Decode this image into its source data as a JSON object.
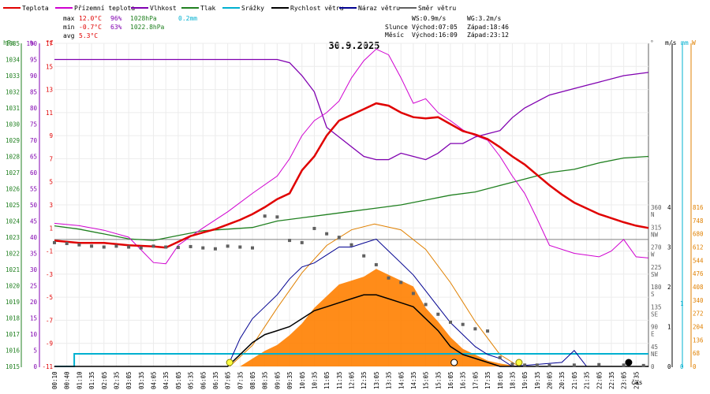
{
  "chart_data": {
    "type": "line",
    "title": "30.9.2025",
    "xlabel": "čas",
    "legend": [
      {
        "name": "Teplota",
        "color": "#e00000"
      },
      {
        "name": "Přízemní teplota",
        "color": "#d000d0"
      },
      {
        "name": "Vlhkost",
        "color": "#8000b0"
      },
      {
        "name": "Tlak",
        "color": "#208020"
      },
      {
        "name": "Srážky",
        "color": "#00b0d0"
      },
      {
        "name": "Rychlost větru",
        "color": "#000000"
      },
      {
        "name": "Náraz větru",
        "color": "#000090"
      },
      {
        "name": "Směr větru",
        "color": "#606060"
      }
    ],
    "stats": {
      "max": {
        "label": "max",
        "temp": "12.0°C",
        "hum": "96%",
        "press": "1028hPa",
        "rain": "0.2mm"
      },
      "min": {
        "label": "min",
        "temp": "-0.7°C",
        "hum": "63%",
        "press": "1022.8hPa"
      },
      "avg": {
        "label": "avg",
        "temp": "5.3°C"
      }
    },
    "info": {
      "ws": "WS:0.9m/s",
      "wg": "WG:3.2m/s",
      "sun_label": "Slunce",
      "sunrise": "Východ:07:05",
      "sunset": "Západ:18:46",
      "moon_label": "Měsíc",
      "moonrise": "Východ:16:09",
      "moonset": "Západ:23:12"
    },
    "axes": {
      "pressure": {
        "unit": "hPa",
        "range": [
          1015,
          1035
        ],
        "ticks": [
          "1035",
          "1034",
          "1033",
          "1032",
          "1031",
          "1030",
          "1029",
          "1028",
          "1027",
          "1026",
          "1025",
          "1024",
          "1023",
          "1022",
          "1021",
          "1020",
          "1019",
          "1018",
          "1017",
          "1016",
          "1015"
        ]
      },
      "humidity": {
        "unit": "%",
        "range": [
          0,
          100
        ],
        "ticks": [
          "100",
          "95",
          "90",
          "85",
          "80",
          "75",
          "70",
          "65",
          "60",
          "55",
          "50",
          "45",
          "40",
          "35",
          "30",
          "25",
          "20",
          "15",
          "10",
          "5",
          "0"
        ]
      },
      "temperature": {
        "unit": "°C",
        "range": [
          -11,
          17
        ],
        "ticks": [
          "17",
          "15",
          "13",
          "11",
          "9",
          "7",
          "5",
          "3",
          "1",
          "-1",
          "-3",
          "-5",
          "-7",
          "-9",
          "-11"
        ]
      },
      "direction": {
        "unit": "°",
        "ticks": [
          {
            "v": 0,
            "n": "0",
            "c": ""
          },
          {
            "v": 45,
            "n": "45",
            "c": "NE"
          },
          {
            "v": 90,
            "n": "90",
            "c": "E"
          },
          {
            "v": 135,
            "n": "135",
            "c": "SE"
          },
          {
            "v": 180,
            "n": "180",
            "c": "S"
          },
          {
            "v": 225,
            "n": "225",
            "c": "SW"
          },
          {
            "v": 270,
            "n": "270",
            "c": "W"
          },
          {
            "v": 315,
            "n": "315",
            "c": "NW"
          },
          {
            "v": 360,
            "n": "360",
            "c": "N"
          }
        ]
      },
      "wind": {
        "unit": "m/s",
        "ticks": [
          "0",
          "1",
          "2",
          "3",
          "4"
        ]
      },
      "rain": {
        "unit": "mm",
        "ticks": [
          "0",
          "1"
        ]
      },
      "solar": {
        "unit": "W",
        "ticks": [
          "0",
          "68",
          "136",
          "204",
          "272",
          "340",
          "408",
          "476",
          "544",
          "612",
          "680",
          "748",
          "816"
        ]
      }
    },
    "time_labels": [
      "00:10",
      "00:40",
      "01:10",
      "01:35",
      "02:05",
      "02:35",
      "03:05",
      "03:35",
      "04:05",
      "04:35",
      "05:05",
      "05:35",
      "06:05",
      "06:35",
      "07:05",
      "07:35",
      "08:05",
      "08:35",
      "09:05",
      "09:35",
      "10:05",
      "10:35",
      "11:05",
      "11:35",
      "12:05",
      "12:35",
      "13:05",
      "13:35",
      "14:05",
      "14:35",
      "15:05",
      "15:35",
      "16:05",
      "16:35",
      "17:05",
      "17:35",
      "18:05",
      "18:35",
      "19:05",
      "19:35",
      "20:05",
      "20:35",
      "21:05",
      "21:35",
      "22:05",
      "22:35",
      "23:05",
      "23:35"
    ],
    "series": {
      "temperature": [
        [
          0,
          -0.1
        ],
        [
          1,
          -0.3
        ],
        [
          2,
          -0.3
        ],
        [
          3,
          -0.5
        ],
        [
          4,
          -0.6
        ],
        [
          4.5,
          -0.7
        ],
        [
          5,
          -0.2
        ],
        [
          5.5,
          0.3
        ],
        [
          6,
          0.6
        ],
        [
          6.5,
          0.9
        ],
        [
          7,
          1.3
        ],
        [
          7.5,
          1.7
        ],
        [
          8,
          2.2
        ],
        [
          8.5,
          2.8
        ],
        [
          9,
          3.5
        ],
        [
          9.5,
          4.0
        ],
        [
          10,
          6.0
        ],
        [
          10.5,
          7.2
        ],
        [
          11,
          9.0
        ],
        [
          11.5,
          10.3
        ],
        [
          12,
          10.8
        ],
        [
          12.5,
          11.3
        ],
        [
          13,
          11.8
        ],
        [
          13.5,
          11.6
        ],
        [
          14,
          11.0
        ],
        [
          14.5,
          10.6
        ],
        [
          15,
          10.5
        ],
        [
          15.5,
          10.6
        ],
        [
          16,
          10.0
        ],
        [
          16.5,
          9.4
        ],
        [
          17,
          9.1
        ],
        [
          17.5,
          8.7
        ],
        [
          18,
          8.0
        ],
        [
          18.5,
          7.2
        ],
        [
          19,
          6.5
        ],
        [
          19.5,
          5.6
        ],
        [
          20,
          4.7
        ],
        [
          20.5,
          3.9
        ],
        [
          21,
          3.2
        ],
        [
          22,
          2.2
        ],
        [
          23,
          1.5
        ],
        [
          23.5,
          1.2
        ],
        [
          24,
          1.0
        ]
      ],
      "ground_temperature": [
        [
          0,
          1.4
        ],
        [
          1,
          1.2
        ],
        [
          2,
          0.8
        ],
        [
          3,
          0.2
        ],
        [
          4,
          -2.0
        ],
        [
          4.5,
          -2.1
        ],
        [
          5,
          -0.5
        ],
        [
          6,
          1.0
        ],
        [
          7,
          2.4
        ],
        [
          8,
          4.0
        ],
        [
          9,
          5.5
        ],
        [
          9.5,
          7.0
        ],
        [
          10,
          9.0
        ],
        [
          10.5,
          10.3
        ],
        [
          11,
          11.0
        ],
        [
          11.5,
          12.0
        ],
        [
          12,
          14.0
        ],
        [
          12.5,
          15.5
        ],
        [
          13,
          16.5
        ],
        [
          13.5,
          16.0
        ],
        [
          14,
          14.0
        ],
        [
          14.5,
          11.8
        ],
        [
          15,
          12.2
        ],
        [
          15.5,
          11.0
        ],
        [
          16,
          10.3
        ],
        [
          16.5,
          9.5
        ],
        [
          17,
          9.0
        ],
        [
          17.5,
          8.6
        ],
        [
          18,
          7.2
        ],
        [
          18.5,
          5.5
        ],
        [
          19,
          4.0
        ],
        [
          19.5,
          1.8
        ],
        [
          20,
          -0.5
        ],
        [
          21,
          -1.2
        ],
        [
          22,
          -1.5
        ],
        [
          22.5,
          -1.0
        ],
        [
          23,
          0.0
        ],
        [
          23.5,
          -1.5
        ],
        [
          24,
          -1.6
        ]
      ],
      "humidity": [
        [
          0,
          95
        ],
        [
          4,
          95
        ],
        [
          5,
          95
        ],
        [
          6,
          95
        ],
        [
          7,
          95
        ],
        [
          8,
          95
        ],
        [
          9,
          95
        ],
        [
          9.5,
          94
        ],
        [
          10,
          90
        ],
        [
          10.5,
          85
        ],
        [
          11,
          74
        ],
        [
          11.5,
          71
        ],
        [
          12,
          68
        ],
        [
          12.5,
          65
        ],
        [
          13,
          64
        ],
        [
          13.5,
          64
        ],
        [
          14,
          66
        ],
        [
          14.5,
          65
        ],
        [
          15,
          64
        ],
        [
          15.5,
          66
        ],
        [
          16,
          69
        ],
        [
          16.5,
          69
        ],
        [
          17,
          71
        ],
        [
          17.5,
          72
        ],
        [
          18,
          73
        ],
        [
          18.5,
          77
        ],
        [
          19,
          80
        ],
        [
          19.5,
          82
        ],
        [
          20,
          84
        ],
        [
          20.5,
          85
        ],
        [
          21,
          86
        ],
        [
          21.5,
          87
        ],
        [
          22,
          88
        ],
        [
          23,
          90
        ],
        [
          24,
          91
        ]
      ],
      "pressure": [
        [
          0,
          1023.7
        ],
        [
          1,
          1023.5
        ],
        [
          2,
          1023.2
        ],
        [
          3,
          1022.9
        ],
        [
          4,
          1022.8
        ],
        [
          5,
          1023.1
        ],
        [
          6,
          1023.4
        ],
        [
          7,
          1023.5
        ],
        [
          8,
          1023.6
        ],
        [
          9,
          1024.0
        ],
        [
          10,
          1024.2
        ],
        [
          11,
          1024.4
        ],
        [
          12,
          1024.6
        ],
        [
          13,
          1024.8
        ],
        [
          14,
          1025.0
        ],
        [
          15,
          1025.3
        ],
        [
          16,
          1025.6
        ],
        [
          17,
          1025.8
        ],
        [
          18,
          1026.2
        ],
        [
          19,
          1026.6
        ],
        [
          20,
          1027.0
        ],
        [
          21,
          1027.2
        ],
        [
          22,
          1027.6
        ],
        [
          23,
          1027.9
        ],
        [
          24,
          1028.0
        ]
      ],
      "rain_mm": [
        [
          0,
          0
        ],
        [
          0.8,
          0
        ],
        [
          0.8,
          0.2
        ],
        [
          24,
          0.2
        ]
      ],
      "wind_speed": [
        [
          0,
          0
        ],
        [
          7,
          0
        ],
        [
          7.5,
          0.3
        ],
        [
          8,
          0.6
        ],
        [
          8.5,
          0.8
        ],
        [
          9,
          0.9
        ],
        [
          9.5,
          1.0
        ],
        [
          10,
          1.2
        ],
        [
          10.5,
          1.4
        ],
        [
          11,
          1.5
        ],
        [
          11.5,
          1.6
        ],
        [
          12,
          1.7
        ],
        [
          12.5,
          1.8
        ],
        [
          13,
          1.8
        ],
        [
          13.5,
          1.7
        ],
        [
          14,
          1.6
        ],
        [
          14.5,
          1.5
        ],
        [
          15,
          1.2
        ],
        [
          15.5,
          0.9
        ],
        [
          16,
          0.5
        ],
        [
          16.5,
          0.3
        ],
        [
          17,
          0.2
        ],
        [
          17.5,
          0.1
        ],
        [
          18,
          0
        ],
        [
          24,
          0
        ]
      ],
      "wind_gust": [
        [
          0,
          0
        ],
        [
          7,
          0
        ],
        [
          7.5,
          0.7
        ],
        [
          8,
          1.2
        ],
        [
          8.5,
          1.5
        ],
        [
          9,
          1.8
        ],
        [
          9.5,
          2.2
        ],
        [
          10,
          2.5
        ],
        [
          10.5,
          2.6
        ],
        [
          11,
          2.8
        ],
        [
          11.5,
          3.0
        ],
        [
          12,
          3.0
        ],
        [
          12.5,
          3.1
        ],
        [
          13,
          3.2
        ],
        [
          13.5,
          2.9
        ],
        [
          14,
          2.6
        ],
        [
          14.5,
          2.3
        ],
        [
          15,
          1.9
        ],
        [
          15.5,
          1.5
        ],
        [
          16,
          1.1
        ],
        [
          16.5,
          0.8
        ],
        [
          17,
          0.5
        ],
        [
          17.5,
          0.3
        ],
        [
          18,
          0.2
        ],
        [
          18.5,
          0
        ],
        [
          20.5,
          0.1
        ],
        [
          21,
          0.4
        ],
        [
          21.5,
          0
        ],
        [
          24,
          0
        ]
      ],
      "solar": [
        [
          0,
          0
        ],
        [
          7.5,
          0
        ],
        [
          8,
          40
        ],
        [
          8.5,
          80
        ],
        [
          9,
          110
        ],
        [
          9.5,
          160
        ],
        [
          10,
          220
        ],
        [
          10.5,
          300
        ],
        [
          11,
          360
        ],
        [
          11.5,
          420
        ],
        [
          12,
          440
        ],
        [
          12.5,
          460
        ],
        [
          13,
          500
        ],
        [
          13.5,
          470
        ],
        [
          14,
          440
        ],
        [
          14.5,
          410
        ],
        [
          15,
          300
        ],
        [
          15.5,
          230
        ],
        [
          16,
          150
        ],
        [
          16.5,
          90
        ],
        [
          17,
          60
        ],
        [
          17.5,
          30
        ],
        [
          18,
          15
        ],
        [
          18.5,
          5
        ],
        [
          19,
          0
        ],
        [
          24,
          0
        ]
      ],
      "solar_theoretical": [
        [
          7.08,
          0
        ],
        [
          8,
          108
        ],
        [
          9,
          300
        ],
        [
          10,
          480
        ],
        [
          11,
          620
        ],
        [
          12,
          700
        ],
        [
          12.93,
          730
        ],
        [
          14,
          700
        ],
        [
          15,
          600
        ],
        [
          16,
          430
        ],
        [
          17,
          230
        ],
        [
          18,
          60
        ],
        [
          18.77,
          0
        ]
      ],
      "wind_direction": [
        [
          0,
          280
        ],
        [
          0.5,
          278
        ],
        [
          1,
          275
        ],
        [
          1.5,
          272
        ],
        [
          2,
          270
        ],
        [
          2.5,
          272
        ],
        [
          3,
          270
        ],
        [
          3.5,
          268
        ],
        [
          4,
          272
        ],
        [
          4.5,
          270
        ],
        [
          5,
          269
        ],
        [
          5.5,
          271
        ],
        [
          6,
          268
        ],
        [
          6.5,
          266
        ],
        [
          7,
          272
        ],
        [
          7.5,
          270
        ],
        [
          8,
          268
        ],
        [
          8.5,
          340
        ],
        [
          9,
          338
        ],
        [
          9.5,
          285
        ],
        [
          10,
          280
        ],
        [
          10.5,
          312
        ],
        [
          11,
          300
        ],
        [
          11.5,
          292
        ],
        [
          12,
          275
        ],
        [
          12.5,
          250
        ],
        [
          13,
          230
        ],
        [
          13.5,
          200
        ],
        [
          14,
          190
        ],
        [
          14.5,
          165
        ],
        [
          15,
          140
        ],
        [
          15.5,
          118
        ],
        [
          16,
          100
        ],
        [
          16.5,
          95
        ],
        [
          17,
          85
        ],
        [
          17.5,
          80
        ],
        [
          18,
          20
        ],
        [
          18.5,
          5
        ],
        [
          19,
          3
        ],
        [
          19.5,
          3
        ],
        [
          20,
          2
        ],
        [
          21,
          3
        ],
        [
          22,
          4
        ],
        [
          23,
          3
        ],
        [
          23.8,
          2
        ]
      ]
    },
    "markers": [
      {
        "t": 7.08,
        "type": "sunrise"
      },
      {
        "t": 18.77,
        "type": "sunset"
      },
      {
        "t": 16.15,
        "type": "moonrise"
      },
      {
        "t": 23.2,
        "type": "moonset"
      }
    ]
  }
}
